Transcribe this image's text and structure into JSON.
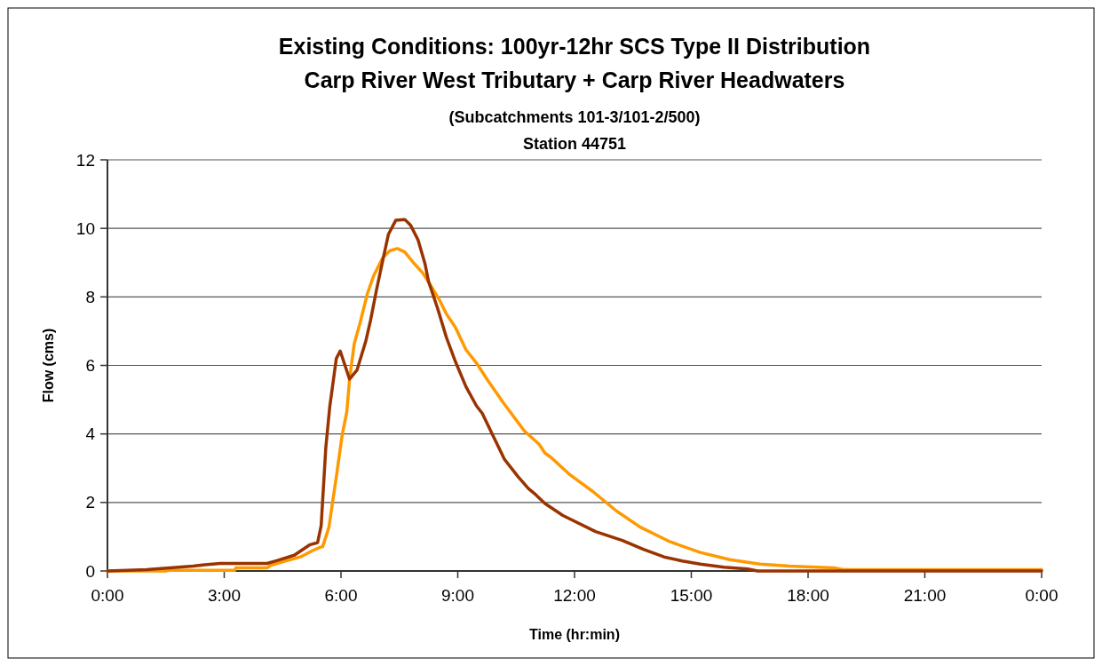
{
  "chart_data": {
    "type": "line",
    "title": "Existing Conditions:  100yr-12hr SCS Type II Distribution\nCarp River West Tributary + Carp River Headwaters",
    "subtitle": "(Subcatchments 101-3/101-2/500)\nStation 44751",
    "xlabel": "Time (hr:min)",
    "ylabel": "Flow (cms)",
    "xlim": [
      0,
      24
    ],
    "xticks": [
      {
        "value": 0,
        "label": "0:00"
      },
      {
        "value": 3,
        "label": "3:00"
      },
      {
        "value": 6,
        "label": "6:00"
      },
      {
        "value": 9,
        "label": "9:00"
      },
      {
        "value": 12,
        "label": "12:00"
      },
      {
        "value": 15,
        "label": "15:00"
      },
      {
        "value": 18,
        "label": "18:00"
      },
      {
        "value": 21,
        "label": "21:00"
      },
      {
        "value": 24,
        "label": "0:00"
      }
    ],
    "ylim": [
      0,
      12
    ],
    "yticks": [
      0,
      2,
      4,
      6,
      8,
      10,
      12
    ],
    "grid": "y",
    "line_style": "solid",
    "marker": "none",
    "series": [
      {
        "color": "#ff9900",
        "x": [
          0,
          1.5,
          1.55,
          3.27,
          3.3,
          4.1,
          4.18,
          4.57,
          4.96,
          5.26,
          5.46,
          5.53,
          5.69,
          5.88,
          6.03,
          6.15,
          6.22,
          6.34,
          6.49,
          6.68,
          6.84,
          7.07,
          7.26,
          7.45,
          7.64,
          7.86,
          8.1,
          8.29,
          8.52,
          8.71,
          8.94,
          9.21,
          9.48,
          9.75,
          10.17,
          10.71,
          11.09,
          11.24,
          11.4,
          11.86,
          12.47,
          13.08,
          13.69,
          14.46,
          15.23,
          15.99,
          16.76,
          17.52,
          18.67,
          18.9,
          24
        ],
        "values": [
          0,
          0,
          0.02,
          0.02,
          0.09,
          0.09,
          0.16,
          0.29,
          0.41,
          0.59,
          0.69,
          0.71,
          1.28,
          2.75,
          3.96,
          4.65,
          5.6,
          6.63,
          7.24,
          8.1,
          8.62,
          9.14,
          9.35,
          9.41,
          9.31,
          9.0,
          8.7,
          8.36,
          7.93,
          7.5,
          7.11,
          6.46,
          6.07,
          5.6,
          4.91,
          4.09,
          3.7,
          3.44,
          3.31,
          2.83,
          2.32,
          1.75,
          1.28,
          0.85,
          0.54,
          0.33,
          0.2,
          0.14,
          0.09,
          0.04,
          0.04
        ]
      },
      {
        "color": "#993300",
        "x": [
          0,
          1.0,
          1.6,
          2.2,
          2.5,
          2.9,
          4.1,
          4.35,
          4.8,
          5.19,
          5.4,
          5.49,
          5.61,
          5.71,
          5.88,
          5.98,
          6.22,
          6.41,
          6.64,
          6.76,
          6.91,
          7.07,
          7.22,
          7.41,
          7.64,
          7.79,
          7.98,
          8.16,
          8.25,
          8.48,
          8.71,
          8.94,
          9.21,
          9.48,
          9.63,
          9.94,
          10.2,
          10.55,
          10.82,
          11.0,
          11.24,
          11.7,
          12.54,
          13.23,
          13.77,
          14.3,
          14.77,
          15.23,
          15.84,
          16.45,
          16.7,
          24
        ],
        "values": [
          0,
          0.04,
          0.09,
          0.14,
          0.18,
          0.22,
          0.22,
          0.3,
          0.46,
          0.76,
          0.83,
          1.32,
          3.6,
          4.78,
          6.2,
          6.42,
          5.6,
          5.86,
          6.72,
          7.32,
          8.19,
          9.05,
          9.83,
          10.24,
          10.26,
          10.09,
          9.66,
          8.96,
          8.45,
          7.67,
          6.81,
          6.11,
          5.38,
          4.82,
          4.6,
          3.87,
          3.26,
          2.75,
          2.4,
          2.23,
          1.97,
          1.62,
          1.15,
          0.89,
          0.63,
          0.41,
          0.29,
          0.2,
          0.11,
          0.06,
          0,
          0
        ]
      }
    ]
  }
}
